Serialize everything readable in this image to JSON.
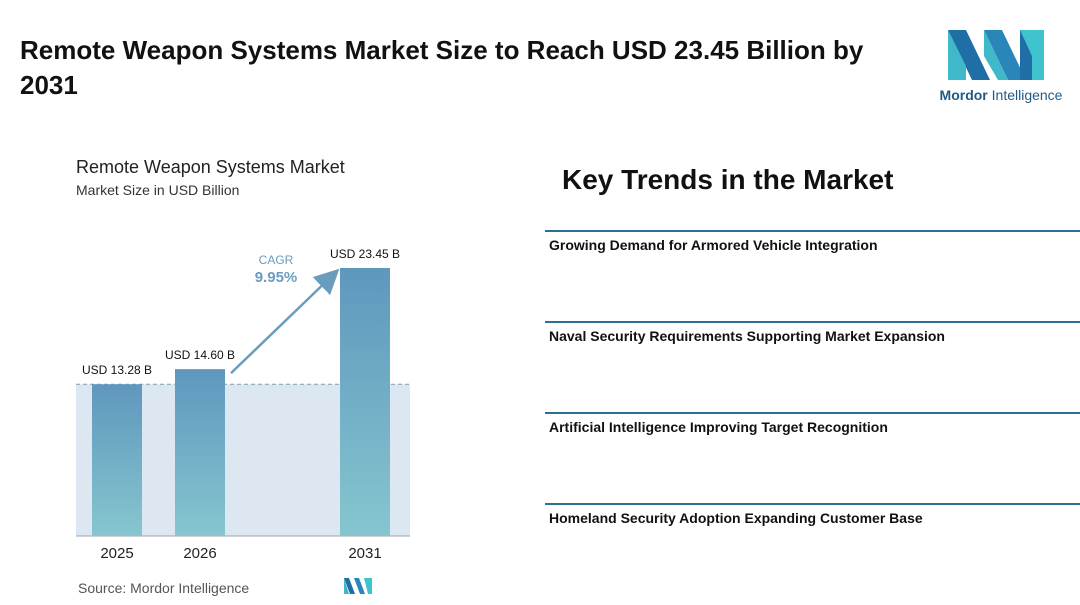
{
  "header": {
    "title": "Remote Weapon Systems Market Size to Reach USD 23.45 Billion by 2031",
    "logo_text_bold": "Mordor",
    "logo_text_rest": " Intelligence"
  },
  "chart": {
    "title": "Remote Weapon Systems Market",
    "subtitle": "Market Size in USD Billion",
    "cagr_label": "CAGR",
    "cagr_value": "9.95%",
    "source": "Source:  Mordor Intelligence"
  },
  "chart_data": {
    "type": "bar",
    "categories": [
      "2025",
      "2026",
      "2031"
    ],
    "values": [
      13.28,
      14.6,
      23.45
    ],
    "data_labels": [
      "USD 13.28 B",
      "USD 14.60 B",
      "USD 23.45 B"
    ],
    "ylim": [
      0,
      23.45
    ],
    "grid": false,
    "colors": {
      "bar_top": "#5f97bd",
      "bar_bottom": "#86c6cf",
      "band": "#dde7f1",
      "arrow": "#6a9dbd",
      "cagr": "#6a9dbd"
    }
  },
  "trends": {
    "heading": "Key Trends in the Market",
    "items": [
      "Growing Demand for Armored Vehicle Integration",
      "Naval Security Requirements Supporting Market Expansion",
      "Artificial Intelligence Improving Target Recognition",
      "Homeland Security Adoption Expanding Customer Base"
    ]
  },
  "colors": {
    "brand_dark": "#1f5a86",
    "brand_teal": "#3fb8c9",
    "divider": "#2b6f93"
  }
}
